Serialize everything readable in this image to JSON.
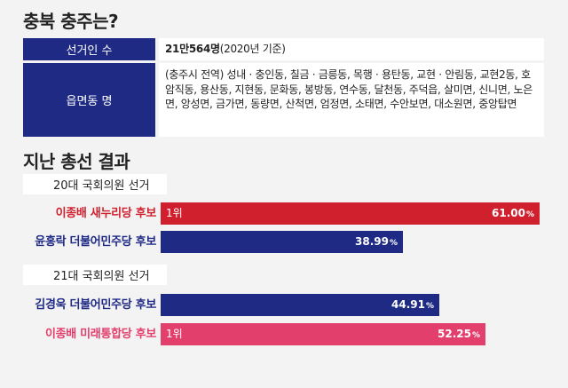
{
  "title": "충북 충주는?",
  "info": {
    "voters_label": "선거인 수",
    "voters_value_bold": "21만564명",
    "voters_value_rest": "(2020년 기준)",
    "districts_label": "읍면동 명",
    "districts_value": "(충주시 전역) 성내 · 충인동, 칠금 · 금릉동, 목행 · 용탄동, 교현 · 안림동, 교현2동, 호암직동, 용산동, 지현동, 문화동, 봉방동, 연수동, 달천동, 주덕읍, 살미면, 신니면, 노은면, 앙성면, 금가면, 동량면, 산척면, 엄정면, 소태면, 수안보면, 대소원면, 중앙탑면"
  },
  "results_title": "지난 총선 결과",
  "colors": {
    "navy": "#1e2a84",
    "red": "#d0202e",
    "pink": "#e33f6d"
  },
  "chart_data": {
    "type": "bar",
    "orientation": "horizontal",
    "title": "지난 총선 결과",
    "xlim": [
      0,
      100
    ],
    "groups": [
      {
        "name": "20대 국회의원 선거",
        "bars": [
          {
            "label": "이종배 새누리당 후보",
            "value": 61.0,
            "display": "61.00",
            "rank": "1위",
            "color": "#d0202e"
          },
          {
            "label": "윤홍락 더불어민주당 후보",
            "value": 38.99,
            "display": "38.99",
            "rank": "",
            "color": "#1e2a84"
          }
        ]
      },
      {
        "name": "21대 국회의원 선거",
        "bars": [
          {
            "label": "김경욱 더불어민주당 후보",
            "value": 44.91,
            "display": "44.91",
            "rank": "",
            "color": "#1e2a84"
          },
          {
            "label": "이종배 미래통합당 후보",
            "value": 52.25,
            "display": "52.25",
            "rank": "1위",
            "color": "#e33f6d"
          }
        ]
      }
    ]
  }
}
